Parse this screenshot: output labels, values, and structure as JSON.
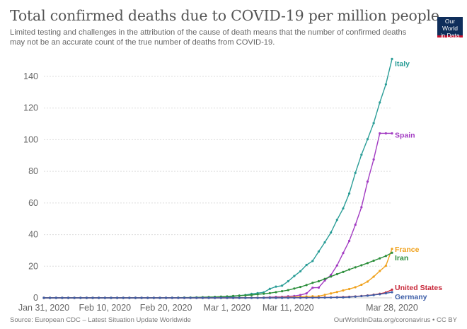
{
  "header": {
    "title": "Total confirmed deaths due to COVID-19 per million people",
    "subtitle_line1": "Limited testing and challenges in the attribution of the cause of death means that the number of confirmed deaths",
    "subtitle_line2": "may not be an accurate count of the true number of deaths from COVID-19.",
    "logo_line1": "Our World",
    "logo_line2": "in Data"
  },
  "footer": {
    "source": "Source: European CDC – Latest Situation Update Worldwide",
    "credit": "OurWorldInData.org/coronavirus • CC BY"
  },
  "chart_data": {
    "type": "line",
    "title": "Total confirmed deaths due to COVID-19 per million people",
    "xlabel": "",
    "ylabel": "",
    "x_start": "2020-01-31",
    "x_end": "2020-03-28",
    "x_ticks": [
      "Jan 31, 2020",
      "Feb 10, 2020",
      "Feb 20, 2020",
      "Mar 1, 2020",
      "Mar 11, 2020",
      "Mar 28, 2020"
    ],
    "x_tick_days": [
      0,
      10,
      20,
      30,
      40,
      57
    ],
    "y_ticks": [
      0,
      20,
      40,
      60,
      80,
      100,
      120,
      140
    ],
    "ylim": [
      0,
      150
    ],
    "grid": true,
    "legend": "inline-right",
    "series": [
      {
        "name": "Italy",
        "color": "#2a9d97",
        "values": [
          0,
          0,
          0,
          0,
          0,
          0,
          0,
          0,
          0,
          0,
          0,
          0,
          0,
          0,
          0,
          0,
          0,
          0,
          0,
          0,
          0,
          0.02,
          0.03,
          0.1,
          0.2,
          0.2,
          0.2,
          0.3,
          0.5,
          0.5,
          0.6,
          0.8,
          1.4,
          1.8,
          2.5,
          3.0,
          3.5,
          5.7,
          7.1,
          7.7,
          10.5,
          13.8,
          16.8,
          20.8,
          23.3,
          29.3,
          35.1,
          41.3,
          49.3,
          56.5,
          66.0,
          79.0,
          90.5,
          100.3,
          110.5,
          123.5,
          135.0,
          151.0
        ]
      },
      {
        "name": "Spain",
        "color": "#a23bc2",
        "values": [
          0,
          0,
          0,
          0,
          0,
          0,
          0,
          0,
          0,
          0,
          0,
          0,
          0,
          0,
          0,
          0,
          0,
          0,
          0,
          0,
          0,
          0,
          0,
          0,
          0,
          0,
          0,
          0,
          0,
          0,
          0,
          0,
          0,
          0.02,
          0.1,
          0.1,
          0.2,
          0.4,
          0.6,
          0.7,
          1.0,
          1.2,
          1.8,
          2.8,
          6.4,
          6.5,
          11.0,
          14.5,
          20.5,
          28.3,
          36.0,
          46.2,
          57.3,
          73.5,
          87.5,
          104.0,
          104.0,
          104.0
        ]
      },
      {
        "name": "France",
        "color": "#f0a21e",
        "values": [
          0,
          0,
          0,
          0,
          0,
          0,
          0,
          0,
          0,
          0,
          0,
          0,
          0,
          0,
          0,
          0.01,
          0.01,
          0.01,
          0.01,
          0.01,
          0.01,
          0.01,
          0.01,
          0.01,
          0.01,
          0.03,
          0.03,
          0.03,
          0.03,
          0.03,
          0.03,
          0.03,
          0.06,
          0.06,
          0.1,
          0.1,
          0.1,
          0.15,
          0.2,
          0.3,
          0.4,
          0.5,
          0.7,
          0.9,
          1.0,
          1.1,
          1.9,
          2.8,
          3.7,
          4.7,
          5.6,
          6.7,
          8.3,
          10.3,
          13.4,
          17.0,
          20.3,
          31.0
        ]
      },
      {
        "name": "Iran",
        "color": "#2d8f3c",
        "values": [
          0,
          0,
          0,
          0,
          0,
          0,
          0,
          0,
          0,
          0,
          0,
          0,
          0,
          0,
          0,
          0,
          0,
          0,
          0,
          0,
          0.02,
          0.05,
          0.1,
          0.2,
          0.2,
          0.3,
          0.4,
          0.5,
          0.6,
          0.8,
          0.9,
          1.2,
          1.4,
          1.6,
          1.8,
          2.2,
          2.6,
          3.0,
          3.6,
          4.2,
          4.9,
          5.9,
          6.9,
          8.1,
          9.5,
          10.5,
          12.0,
          13.5,
          15.0,
          16.4,
          17.9,
          19.3,
          20.6,
          22.0,
          23.5,
          25.0,
          26.5,
          28.5
        ]
      },
      {
        "name": "United States",
        "color": "#c8283a",
        "values": [
          0,
          0,
          0,
          0,
          0,
          0,
          0,
          0,
          0,
          0,
          0,
          0,
          0,
          0,
          0,
          0,
          0,
          0,
          0,
          0,
          0,
          0,
          0,
          0,
          0,
          0,
          0,
          0,
          0,
          0.003,
          0.003,
          0.01,
          0.02,
          0.03,
          0.03,
          0.04,
          0.05,
          0.05,
          0.06,
          0.08,
          0.1,
          0.1,
          0.12,
          0.12,
          0.15,
          0.2,
          0.3,
          0.3,
          0.4,
          0.5,
          0.7,
          0.9,
          1.2,
          1.5,
          2.0,
          2.6,
          3.4,
          5.2
        ]
      },
      {
        "name": "Germany",
        "color": "#3e5fa8",
        "values": [
          0,
          0,
          0,
          0,
          0,
          0,
          0,
          0,
          0,
          0,
          0,
          0,
          0,
          0,
          0,
          0,
          0,
          0,
          0,
          0,
          0,
          0,
          0,
          0,
          0,
          0,
          0,
          0,
          0,
          0,
          0,
          0,
          0,
          0,
          0,
          0,
          0,
          0,
          0,
          0,
          0.02,
          0.03,
          0.04,
          0.1,
          0.1,
          0.1,
          0.15,
          0.2,
          0.3,
          0.3,
          0.5,
          0.8,
          1.1,
          1.4,
          1.8,
          2.3,
          2.9,
          3.6
        ]
      }
    ]
  }
}
